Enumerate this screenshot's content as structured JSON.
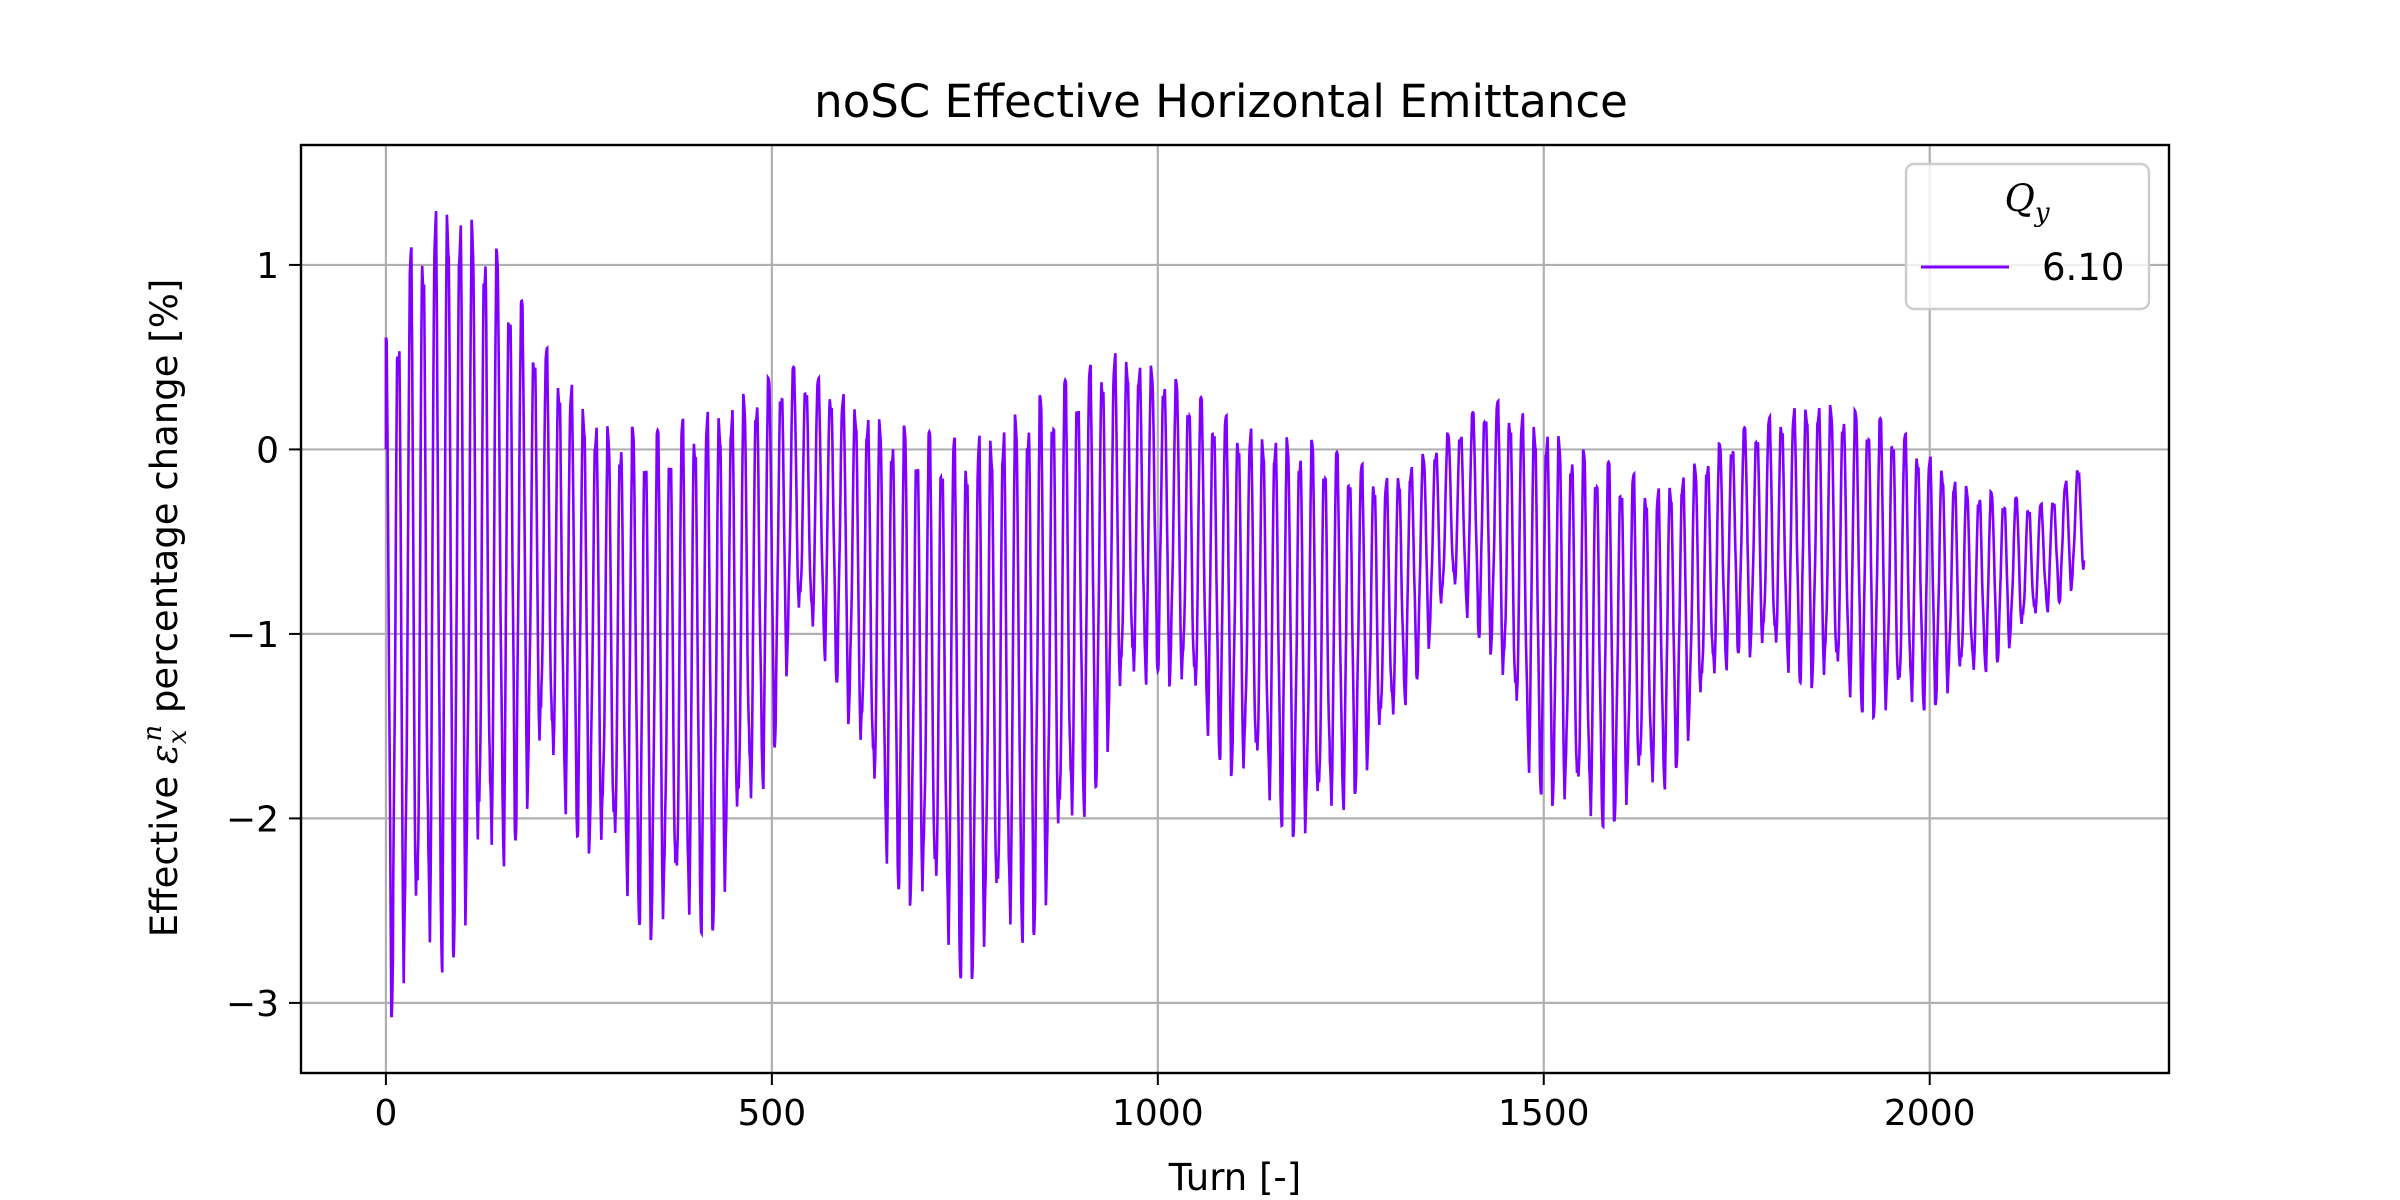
{
  "chart_data": {
    "type": "line",
    "title": "noSC Effective Horizontal Emittance",
    "xlabel": "Turn [-]",
    "ylabel": {
      "before": "Effective ",
      "symbol": "ε",
      "sub": "x",
      "sup": "n",
      "after": " percentage change [%]"
    },
    "xlim": [
      -110,
      2310
    ],
    "ylim": [
      -3.38,
      1.65
    ],
    "xticks": [
      0,
      500,
      1000,
      1500,
      2000
    ],
    "xtick_labels": [
      "0",
      "500",
      "1000",
      "1500",
      "2000"
    ],
    "yticks": [
      -3,
      -2,
      -1,
      0,
      1
    ],
    "ytick_labels": [
      "−3",
      "−2",
      "−1",
      "0",
      "1"
    ],
    "grid": true,
    "legend": {
      "position": "top-right",
      "title_symbol": "Q",
      "title_sub": "y",
      "entries": [
        {
          "label": "6.10",
          "color": "#7f00ff"
        }
      ]
    },
    "series": [
      {
        "name": "6.10",
        "color": "#7f00ff",
        "turn_range": [
          0,
          2200
        ],
        "oscillation_period_turns": 16,
        "upper_envelope": {
          "x": [
            0,
            40,
            80,
            130,
            200,
            280,
            350,
            430,
            500,
            530,
            580,
            650,
            750,
            850,
            950,
            1000,
            1100,
            1200,
            1300,
            1380,
            1430,
            1480,
            1550,
            1650,
            1750,
            1850,
            1950,
            2050,
            2150,
            2200
          ],
          "y": [
            0.6,
            1.2,
            1.4,
            1.2,
            0.6,
            0.15,
            0.1,
            0.25,
            0.4,
            0.45,
            0.35,
            0.15,
            0.05,
            0.3,
            0.55,
            0.45,
            0.15,
            0.05,
            -0.15,
            0.1,
            0.28,
            0.2,
            0.0,
            -0.2,
            0.1,
            0.28,
            0.15,
            -0.2,
            -0.3,
            -0.05
          ]
        },
        "lower_envelope": {
          "x": [
            0,
            40,
            80,
            130,
            200,
            280,
            350,
            430,
            500,
            530,
            580,
            650,
            750,
            850,
            950,
            1000,
            1100,
            1200,
            1300,
            1380,
            1430,
            1480,
            1550,
            1650,
            1750,
            1850,
            1950,
            2050,
            2150,
            2200
          ],
          "y": [
            -3.1,
            -3.0,
            -2.8,
            -2.5,
            -1.8,
            -2.3,
            -2.7,
            -2.6,
            -1.7,
            -1.0,
            -1.2,
            -2.3,
            -2.9,
            -2.6,
            -1.5,
            -1.2,
            -1.8,
            -2.2,
            -1.6,
            -0.8,
            -1.1,
            -1.8,
            -2.1,
            -1.9,
            -1.1,
            -1.3,
            -1.5,
            -1.3,
            -0.9,
            -0.7
          ]
        },
        "start_value": 0.0
      }
    ]
  }
}
